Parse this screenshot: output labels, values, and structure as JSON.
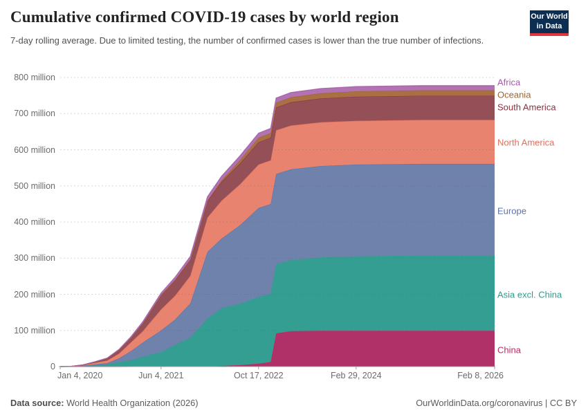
{
  "header": {
    "logo": {
      "line1": "Our World",
      "line2": "in Data",
      "bg": "#0d2e53",
      "bar": "#e0373c"
    }
  },
  "footer": {
    "source_label": "Data source:",
    "source_value": " World Health Organization (2026)",
    "credit": "OurWorldinData.org/coronavirus | CC BY"
  },
  "chart_data": {
    "type": "area",
    "stacked": true,
    "title": "Cumulative confirmed COVID-19 cases by world region",
    "subtitle": "7-day rolling average. Due to limited testing, the number of confirmed cases is lower than the true number of infections.",
    "unit": "million cases (cumulative)",
    "ylim": [
      0,
      800
    ],
    "grid": "dashed-horizontal",
    "legend_position": "right-edge-labels",
    "x_ticks": [
      {
        "date": "2020-01-04",
        "label": "Jan 4, 2020"
      },
      {
        "date": "2021-06-04",
        "label": "Jun 4, 2021"
      },
      {
        "date": "2022-10-17",
        "label": "Oct 17, 2022"
      },
      {
        "date": "2024-02-29",
        "label": "Feb 29, 2024"
      },
      {
        "date": "2026-02-08",
        "label": "Feb 8, 2026"
      }
    ],
    "y_ticks": [
      {
        "value": 0,
        "label": "0"
      },
      {
        "value": 100,
        "label": "100 million"
      },
      {
        "value": 200,
        "label": "200 million"
      },
      {
        "value": 300,
        "label": "300 million"
      },
      {
        "value": 400,
        "label": "400 million"
      },
      {
        "value": 500,
        "label": "500 million"
      },
      {
        "value": 600,
        "label": "600 million"
      },
      {
        "value": 700,
        "label": "700 million"
      },
      {
        "value": 800,
        "label": "800 million"
      }
    ],
    "dates": [
      "2020-01-04",
      "2020-03-01",
      "2020-05-01",
      "2020-07-01",
      "2020-09-01",
      "2020-11-01",
      "2021-01-01",
      "2021-03-01",
      "2021-06-04",
      "2021-08-15",
      "2021-11-01",
      "2022-01-28",
      "2022-04-10",
      "2022-07-15",
      "2022-10-17",
      "2022-12-18",
      "2023-01-15",
      "2023-04-01",
      "2023-09-01",
      "2024-02-29",
      "2025-02-01",
      "2026-02-08"
    ],
    "series": [
      {
        "name": "China",
        "fill": "#b03168",
        "color": "#c02a63",
        "label_y": 506,
        "values": [
          0,
          0.08,
          0.08,
          0.09,
          0.09,
          0.09,
          0.1,
          0.1,
          0.11,
          0.12,
          0.13,
          0.5,
          2,
          4,
          8,
          13,
          92,
          98,
          99,
          99,
          99,
          99
        ]
      },
      {
        "name": "Asia excl. China",
        "fill": "#359e92",
        "color": "#2d9c8e",
        "label_y": 426,
        "values": [
          0,
          0.05,
          1.2,
          3.5,
          6,
          12,
          18,
          27,
          40,
          60,
          80,
          132,
          160,
          170,
          185,
          188,
          191,
          196,
          203,
          206,
          208,
          208
        ]
      },
      {
        "name": "Europe",
        "fill": "#6e82ac",
        "color": "#5d72a9",
        "label_y": 305,
        "values": [
          0,
          0.3,
          1.5,
          2.5,
          3.5,
          11,
          25,
          39,
          60,
          70,
          95,
          185,
          192,
          218,
          246,
          249,
          250,
          252,
          253,
          254,
          254,
          254
        ]
      },
      {
        "name": "North America",
        "fill": "#e8836f",
        "color": "#e56e5a",
        "label_y": 206,
        "values": [
          0,
          0.1,
          1.5,
          4.5,
          7,
          13,
          24,
          31,
          58,
          66,
          76,
          95,
          105,
          113,
          120,
          120.5,
          120.7,
          121,
          121,
          121,
          121.5,
          121.5
        ]
      },
      {
        "name": "South America",
        "fill": "#955057",
        "color": "#8a3140",
        "label_y": 155,
        "values": [
          0,
          0.02,
          0.5,
          2.5,
          6,
          10,
          13,
          22,
          40,
          44,
          45,
          46,
          52,
          58,
          62,
          63,
          63.5,
          64.5,
          66,
          67,
          67,
          67
        ]
      },
      {
        "name": "Oceania",
        "fill": "#a87043",
        "color": "#a0632e",
        "label_y": 137,
        "values": [
          0,
          0,
          0.01,
          0.01,
          0.03,
          0.04,
          0.05,
          0.06,
          0.07,
          0.1,
          0.3,
          1,
          4,
          9,
          12.5,
          13,
          13.2,
          13.8,
          14.3,
          14.8,
          15,
          15
        ]
      },
      {
        "name": "Africa",
        "fill": "#b173b2",
        "color": "#a65ba8",
        "label_y": 119,
        "values": [
          0,
          0.01,
          0.05,
          0.4,
          1.2,
          1.8,
          2.8,
          3.9,
          5,
          7,
          8.5,
          10.5,
          11.5,
          12,
          12.5,
          12.7,
          12.8,
          12.9,
          13,
          13,
          13,
          13
        ]
      }
    ]
  }
}
